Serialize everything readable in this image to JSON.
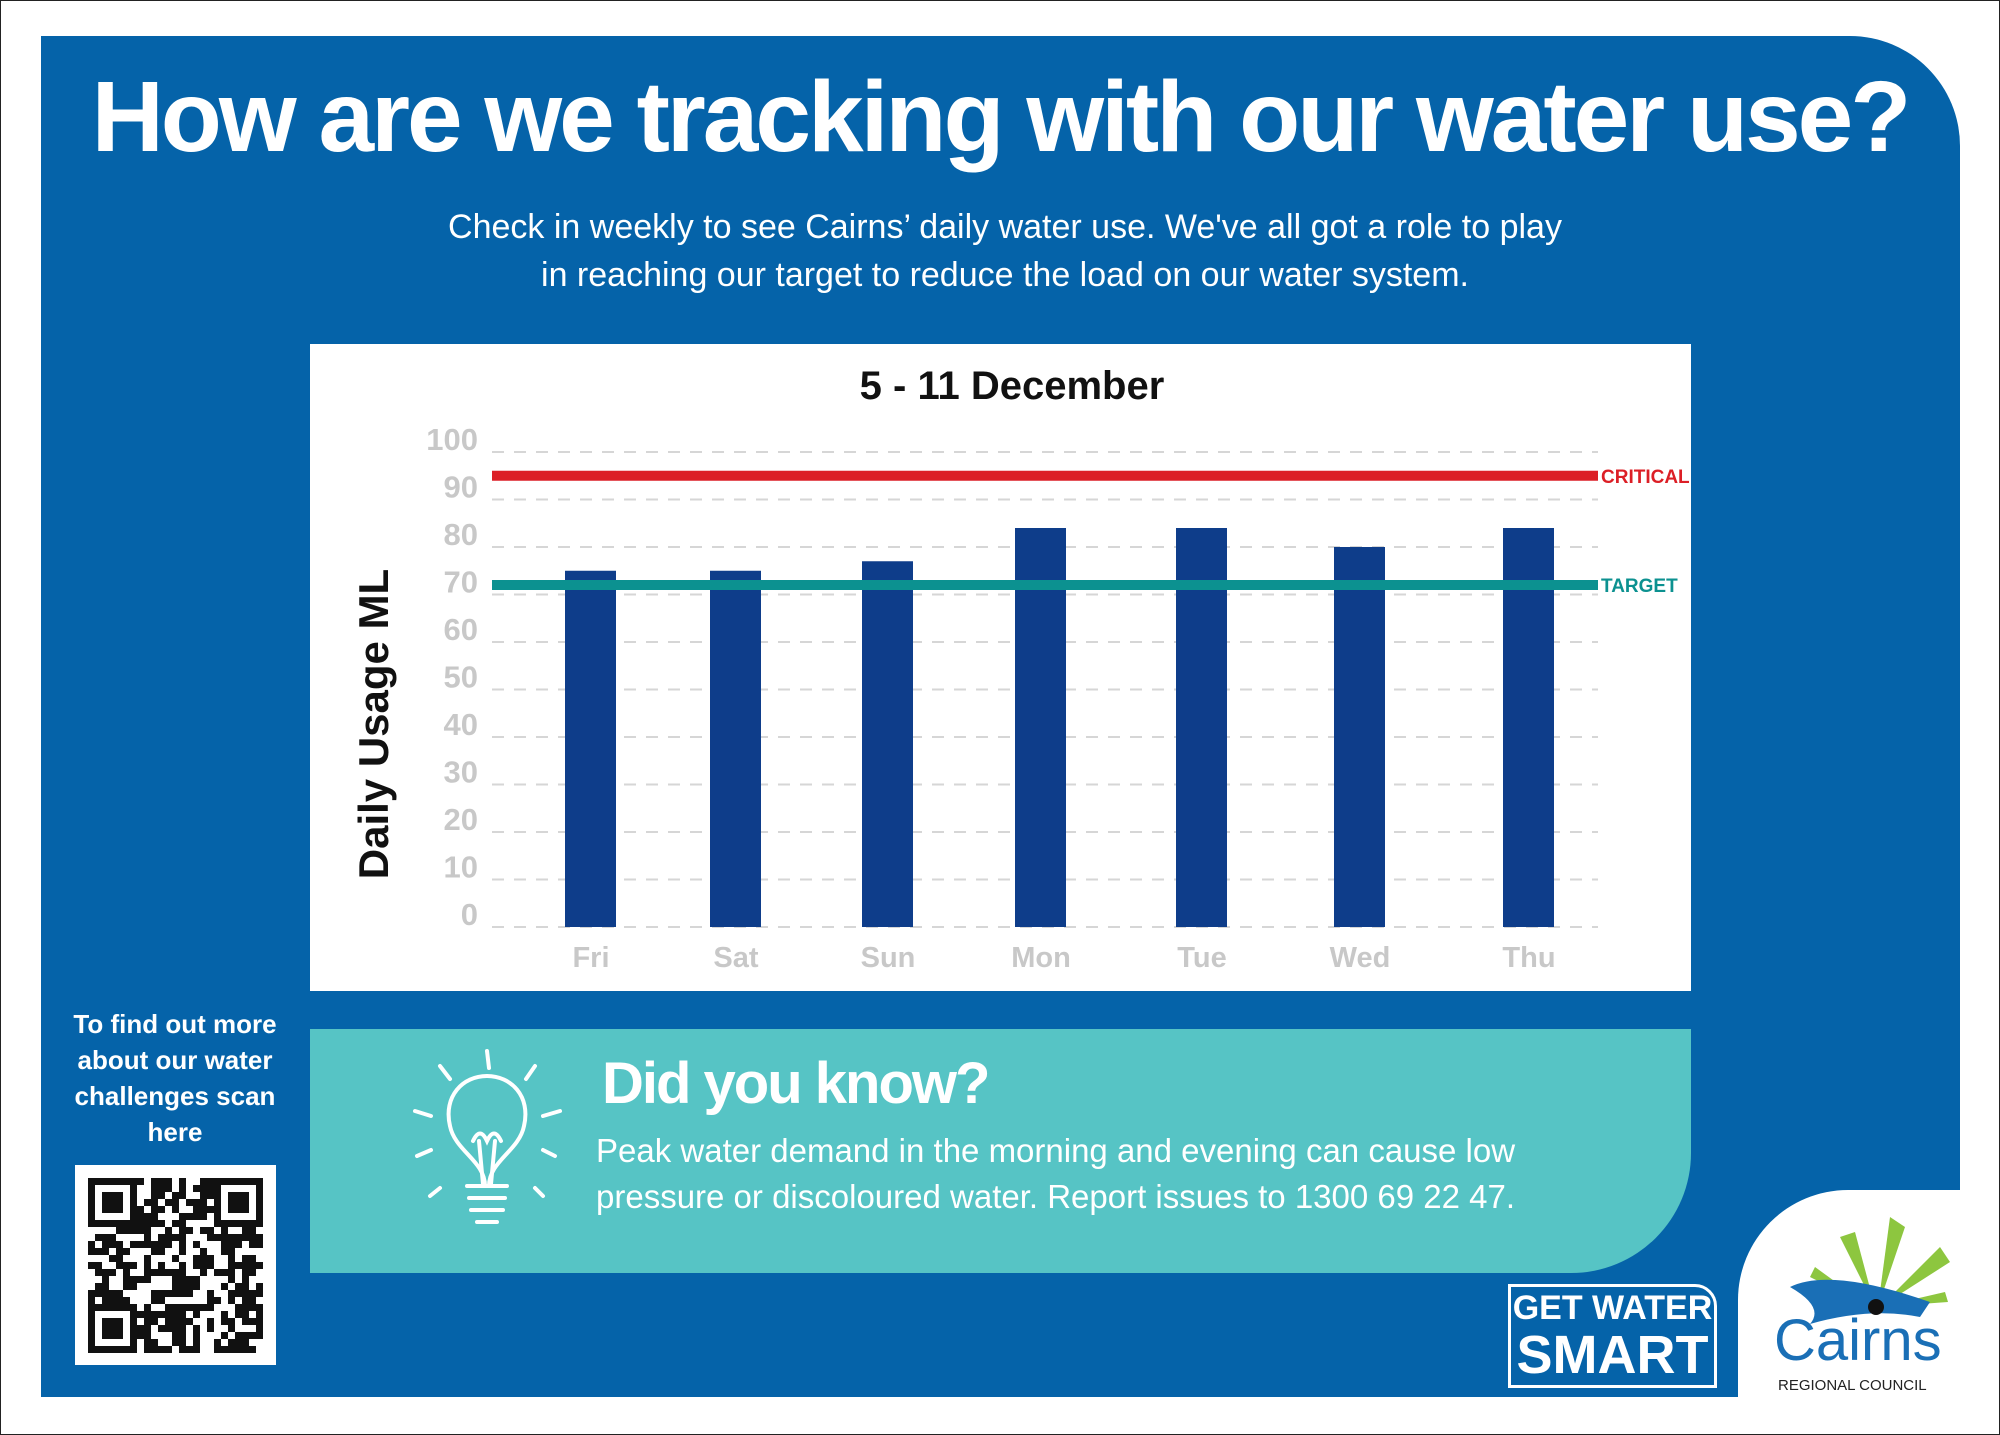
{
  "header": {
    "title": "How are we tracking with our water use?",
    "subtitle_lines": [
      "Check in weekly to see Cairns’ daily water use. We've all got a role to play",
      "in reaching our target to reduce the load on our water system."
    ]
  },
  "colors": {
    "panel": "#0563a9",
    "bar": "#0e3d8a",
    "critical": "#dc1f26",
    "target": "#0c9190",
    "teal": "#56c4c5",
    "tick": "#c8c8c8"
  },
  "chart_data": {
    "type": "bar",
    "title": "5 - 11 December",
    "ylabel": "Daily Usage ML",
    "xlabel": "",
    "categories": [
      "Fri",
      "Sat",
      "Sun",
      "Mon",
      "Tue",
      "Wed",
      "Thu"
    ],
    "values": [
      75,
      75,
      77,
      84,
      84,
      80,
      84
    ],
    "ylim": [
      0,
      100
    ],
    "yticks": [
      0,
      10,
      20,
      30,
      40,
      50,
      60,
      70,
      80,
      90,
      100
    ],
    "grid": "dashed horizontal",
    "reference_lines": [
      {
        "label": "CRITICAL",
        "value": 95,
        "color": "#dc1f26"
      },
      {
        "label": "TARGET",
        "value": 72,
        "color": "#0c9190"
      }
    ]
  },
  "did_you_know": {
    "heading": "Did you know?",
    "icon": "lightbulb-icon",
    "lines": [
      "Peak water demand in the morning and evening can cause low",
      "pressure or discoloured water. Report issues to 1300 69 22 47."
    ]
  },
  "qr_prompt": {
    "lines": [
      "To find out more",
      "about our water",
      "challenges scan",
      "here"
    ]
  },
  "logos": {
    "get_water_smart": [
      "GET WATER",
      "SMART"
    ],
    "council": [
      "Cairns",
      "REGIONAL COUNCIL"
    ]
  }
}
